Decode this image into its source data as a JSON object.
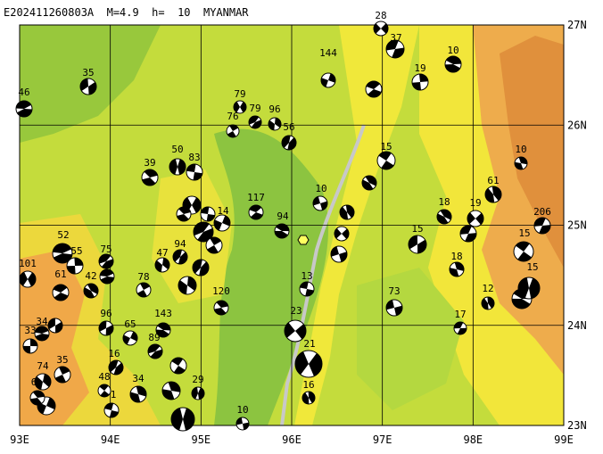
{
  "header": {
    "title": "E202411260803A  M=4.9  h=  10  MYANMAR"
  },
  "axes": {
    "lon_labels": [
      "93E",
      "94E",
      "95E",
      "96E",
      "97E",
      "98E",
      "99E"
    ],
    "lat_labels": [
      "23N",
      "24N",
      "25N",
      "26N",
      "27N"
    ]
  },
  "events": [
    {
      "depth": 28
    },
    {
      "depth": 37
    },
    {
      "depth": 10
    },
    {
      "depth": 144
    },
    {
      "depth": 35
    },
    {
      "depth": 46
    },
    {
      "depth": 19
    },
    {
      "depth": 79
    },
    {
      "depth": 79
    },
    {
      "depth": 76
    },
    {
      "depth": 96
    },
    {
      "depth": 56
    },
    {
      "depth": 15
    },
    {
      "depth": 10
    },
    {
      "depth": 50
    },
    {
      "depth": 83
    },
    {
      "depth": 39
    },
    {
      "depth": 61
    },
    {
      "depth": 10
    },
    {
      "depth": 117
    },
    {
      "depth": 18
    },
    {
      "depth": 19
    },
    {
      "depth": 206
    },
    {
      "depth": 94
    },
    {
      "depth": 14
    },
    {
      "depth": 15
    },
    {
      "depth": 52
    },
    {
      "depth": 55
    },
    {
      "depth": 101
    },
    {
      "depth": 75
    },
    {
      "depth": 78
    },
    {
      "depth": 47
    },
    {
      "depth": 94
    },
    {
      "depth": 15
    },
    {
      "depth": 18
    },
    {
      "depth": 15
    },
    {
      "depth": 13
    },
    {
      "depth": 120
    },
    {
      "depth": 12
    },
    {
      "depth": 73
    },
    {
      "depth": 61
    },
    {
      "depth": 42
    },
    {
      "depth": 23
    },
    {
      "depth": 17
    },
    {
      "depth": 143
    },
    {
      "depth": 65
    },
    {
      "depth": 96
    },
    {
      "depth": 34
    },
    {
      "depth": 33
    },
    {
      "depth": 21
    },
    {
      "depth": 89
    },
    {
      "depth": 35
    },
    {
      "depth": 74
    },
    {
      "depth": 16
    },
    {
      "depth": 48
    },
    {
      "depth": 34
    },
    {
      "depth": 29
    },
    {
      "depth": 1
    },
    {
      "depth": 6
    },
    {
      "depth": 16
    },
    {
      "depth": 10
    }
  ]
}
